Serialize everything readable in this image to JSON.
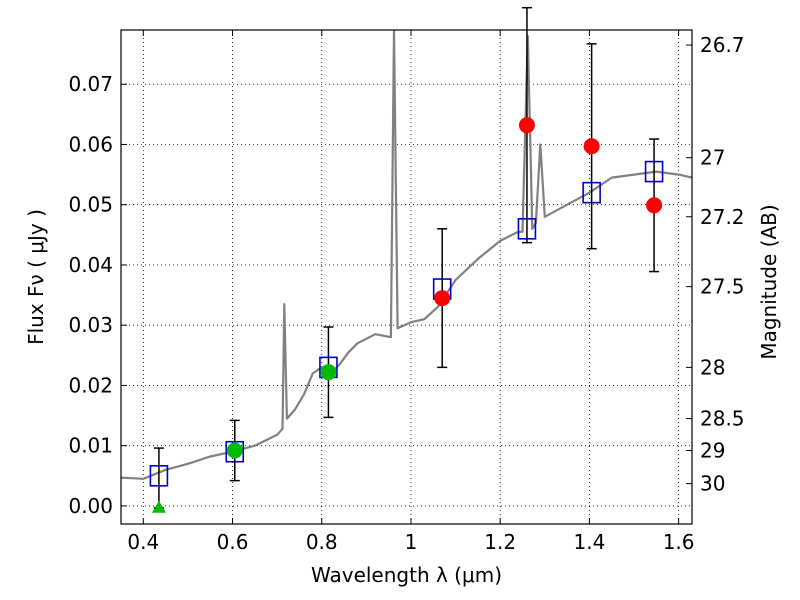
{
  "chart_data": {
    "type": "scatter",
    "xlabel": "Wavelength  λ (μm)",
    "ylabel": "Flux  Fν  ( μJy )",
    "ylabel_right": "Magnitude (AB)",
    "xlim": [
      0.35,
      1.63
    ],
    "ylim": [
      -0.003,
      0.079
    ],
    "grid": true,
    "x_ticks": [
      0.4,
      0.6,
      0.8,
      1.0,
      1.2,
      1.4,
      1.6
    ],
    "x_tick_labels": [
      "0.4",
      "0.6",
      "0.8",
      "1",
      "1.2",
      "1.4",
      "1.6"
    ],
    "y_ticks": [
      0.0,
      0.01,
      0.02,
      0.03,
      0.04,
      0.05,
      0.06,
      0.07
    ],
    "y_tick_labels": [
      "0.00",
      "0.01",
      "0.02",
      "0.03",
      "0.04",
      "0.05",
      "0.06",
      "0.07"
    ],
    "mag_ticks": [
      {
        "label": "26.7",
        "flux": 0.0765
      },
      {
        "label": "27",
        "flux": 0.0578
      },
      {
        "label": "27.2",
        "flux": 0.048
      },
      {
        "label": "27.5",
        "flux": 0.0364
      },
      {
        "label": "28",
        "flux": 0.023
      },
      {
        "label": "28.5",
        "flux": 0.0145
      },
      {
        "label": "29",
        "flux": 0.0092
      },
      {
        "label": "30",
        "flux": 0.0037
      }
    ],
    "model_spectrum": {
      "color": "#808080",
      "points": [
        [
          0.35,
          0.0047
        ],
        [
          0.4,
          0.0045
        ],
        [
          0.45,
          0.006
        ],
        [
          0.5,
          0.007
        ],
        [
          0.55,
          0.0082
        ],
        [
          0.6,
          0.009
        ],
        [
          0.65,
          0.01
        ],
        [
          0.7,
          0.0118
        ],
        [
          0.712,
          0.0128
        ],
        [
          0.716,
          0.0335
        ],
        [
          0.722,
          0.0145
        ],
        [
          0.74,
          0.016
        ],
        [
          0.76,
          0.0185
        ],
        [
          0.78,
          0.022
        ],
        [
          0.8,
          0.023
        ],
        [
          0.82,
          0.022
        ],
        [
          0.84,
          0.0235
        ],
        [
          0.86,
          0.0255
        ],
        [
          0.88,
          0.027
        ],
        [
          0.92,
          0.0285
        ],
        [
          0.955,
          0.028
        ],
        [
          0.962,
          0.079
        ],
        [
          0.97,
          0.0295
        ],
        [
          1.0,
          0.0305
        ],
        [
          1.03,
          0.031
        ],
        [
          1.06,
          0.033
        ],
        [
          1.1,
          0.0375
        ],
        [
          1.15,
          0.041
        ],
        [
          1.2,
          0.044
        ],
        [
          1.24,
          0.0455
        ],
        [
          1.25,
          0.0455
        ],
        [
          1.262,
          0.078
        ],
        [
          1.272,
          0.046
        ],
        [
          1.28,
          0.047
        ],
        [
          1.29,
          0.06
        ],
        [
          1.3,
          0.048
        ],
        [
          1.35,
          0.05
        ],
        [
          1.4,
          0.052
        ],
        [
          1.45,
          0.0545
        ],
        [
          1.5,
          0.055
        ],
        [
          1.55,
          0.0555
        ],
        [
          1.6,
          0.055
        ],
        [
          1.63,
          0.0545
        ]
      ]
    },
    "series": [
      {
        "marker": "square-open",
        "color": "#0000cc",
        "points": [
          [
            0.435,
            0.005
          ],
          [
            0.605,
            0.009
          ],
          [
            0.815,
            0.023
          ],
          [
            1.07,
            0.036
          ],
          [
            1.26,
            0.046
          ],
          [
            1.405,
            0.052
          ],
          [
            1.545,
            0.0555
          ]
        ]
      },
      {
        "marker": "circle",
        "color": "#00bb00",
        "points": [
          [
            0.605,
            0.0092
          ],
          [
            0.815,
            0.0222
          ]
        ],
        "err": [
          0.005,
          0.0075
        ]
      },
      {
        "marker": "triangle-up",
        "color": "#00bb00",
        "points": [
          [
            0.435,
            -0.0003
          ]
        ],
        "err_up": 0.0093
      },
      {
        "marker": "circle",
        "color": "#ff0000",
        "points": [
          [
            1.07,
            0.0345
          ],
          [
            1.26,
            0.0632
          ],
          [
            1.405,
            0.0597
          ],
          [
            1.545,
            0.0499
          ]
        ],
        "err": [
          0.0115,
          0.0195,
          0.017,
          0.011
        ]
      }
    ]
  }
}
